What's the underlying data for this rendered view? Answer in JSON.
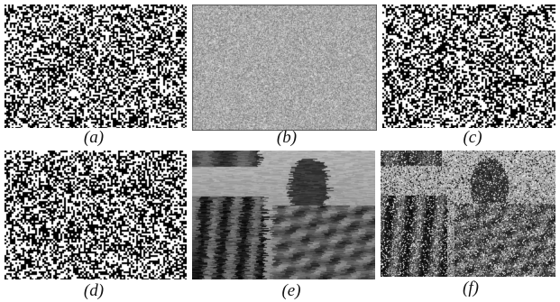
{
  "figure": {
    "panels": [
      {
        "id": "a",
        "caption": "(a)",
        "texture": "binary-noise",
        "density": 0.5
      },
      {
        "id": "b",
        "caption": "(b)",
        "texture": "gray-noise",
        "density": 0.5
      },
      {
        "id": "c",
        "caption": "(c)",
        "texture": "binary-noise",
        "density": 0.5
      },
      {
        "id": "d",
        "caption": "(d)",
        "texture": "binary-noise",
        "density": 0.5
      },
      {
        "id": "e",
        "caption": "(e)",
        "texture": "reconstructed-grayscale-photo",
        "density": 0
      },
      {
        "id": "f",
        "caption": "(f)",
        "texture": "noisy-grayscale-photo",
        "density": 0.3
      }
    ]
  }
}
